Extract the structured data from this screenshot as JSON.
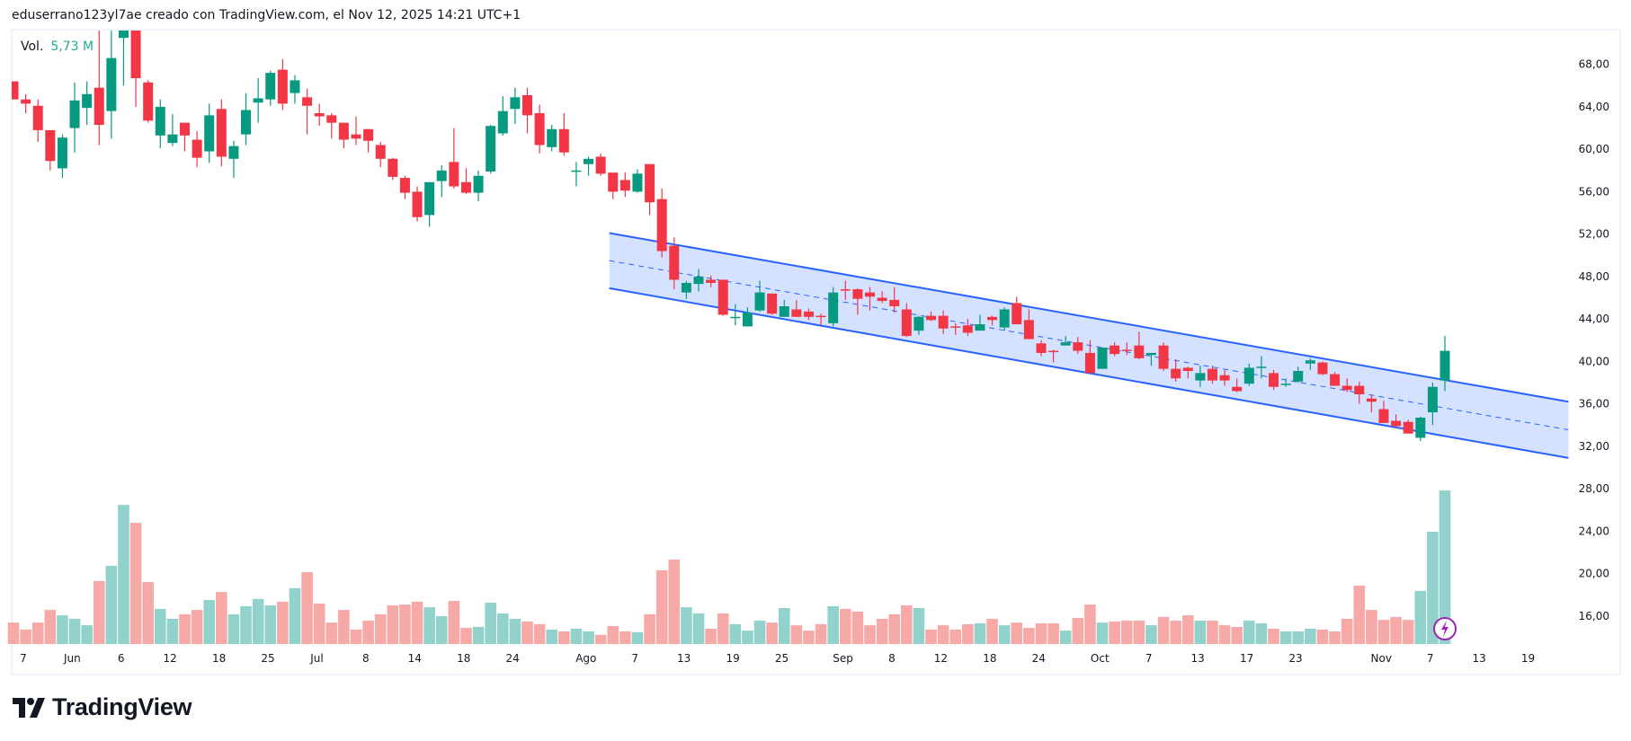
{
  "header": {
    "text": "eduserrano123yl7ae creado con TradingView.com, el Nov 12, 2025 14:21 UTC+1"
  },
  "legend": {
    "label": "Vol.",
    "value": "5,73 M"
  },
  "logo": {
    "text": "TradingView"
  },
  "colors": {
    "up": "#089981",
    "down": "#f23645",
    "vol_up": "#92d2cc",
    "vol_down": "#f7a9a7",
    "channel_line": "#2962ff",
    "channel_fill": "#d3e0ff",
    "event_icon": "#9c27b0"
  },
  "chart_data": {
    "type": "candlestick",
    "ylim": [
      16,
      68
    ],
    "price_ticks": [
      "68,00",
      "64,00",
      "60,00",
      "56,00",
      "52,00",
      "48,00",
      "44,00",
      "40,00",
      "36,00",
      "32,00",
      "28,00",
      "24,00",
      "20,00",
      "16,00"
    ],
    "price_tick_values": [
      68,
      64,
      60,
      56,
      52,
      48,
      44,
      40,
      36,
      32,
      28,
      24,
      20,
      16
    ],
    "x_labels": [
      {
        "text": "7",
        "index": 1
      },
      {
        "text": "Jun",
        "index": 5
      },
      {
        "text": "6",
        "index": 9
      },
      {
        "text": "12",
        "index": 13
      },
      {
        "text": "18",
        "index": 17
      },
      {
        "text": "25",
        "index": 21
      },
      {
        "text": "Jul",
        "index": 25
      },
      {
        "text": "8",
        "index": 29
      },
      {
        "text": "14",
        "index": 33
      },
      {
        "text": "18",
        "index": 37
      },
      {
        "text": "24",
        "index": 41
      },
      {
        "text": "Ago",
        "index": 47
      },
      {
        "text": "7",
        "index": 51
      },
      {
        "text": "13",
        "index": 55
      },
      {
        "text": "19",
        "index": 59
      },
      {
        "text": "25",
        "index": 63
      },
      {
        "text": "Sep",
        "index": 68
      },
      {
        "text": "8",
        "index": 72
      },
      {
        "text": "12",
        "index": 76
      },
      {
        "text": "18",
        "index": 80
      },
      {
        "text": "24",
        "index": 84
      },
      {
        "text": "Oct",
        "index": 89
      },
      {
        "text": "7",
        "index": 93
      },
      {
        "text": "13",
        "index": 97
      },
      {
        "text": "17",
        "index": 101
      },
      {
        "text": "23",
        "index": 105
      },
      {
        "text": "Nov",
        "index": 112
      },
      {
        "text": "7",
        "index": 116
      },
      {
        "text": "13",
        "index": 120
      },
      {
        "text": "19",
        "index": 124
      }
    ],
    "ohlc": [
      [
        66.4,
        66.4,
        64.7,
        64.7
      ],
      [
        64.7,
        65.2,
        63.4,
        64.3
      ],
      [
        64.1,
        64.7,
        60.7,
        61.8
      ],
      [
        61.8,
        61.8,
        58.0,
        58.9
      ],
      [
        58.2,
        61.4,
        57.3,
        61.1
      ],
      [
        62.0,
        66.3,
        59.7,
        64.6
      ],
      [
        63.9,
        66.4,
        62.3,
        65.2
      ],
      [
        65.8,
        72.5,
        60.4,
        62.3
      ],
      [
        63.6,
        71.5,
        61.0,
        68.6
      ],
      [
        70.5,
        72.0,
        66.0,
        71.2
      ],
      [
        71.5,
        72.0,
        64.0,
        66.7
      ],
      [
        66.3,
        66.5,
        62.5,
        62.7
      ],
      [
        61.3,
        64.7,
        60.1,
        64.0
      ],
      [
        60.6,
        63.3,
        60.3,
        61.4
      ],
      [
        62.5,
        62.5,
        59.8,
        61.3
      ],
      [
        60.9,
        61.7,
        58.3,
        59.2
      ],
      [
        59.8,
        64.3,
        58.7,
        63.2
      ],
      [
        63.8,
        64.7,
        58.4,
        59.3
      ],
      [
        59.1,
        60.8,
        57.3,
        60.3
      ],
      [
        61.4,
        65.3,
        60.4,
        63.7
      ],
      [
        64.4,
        66.7,
        62.5,
        64.8
      ],
      [
        64.7,
        67.4,
        64.1,
        67.2
      ],
      [
        67.5,
        68.5,
        63.7,
        64.3
      ],
      [
        65.3,
        67.0,
        64.3,
        66.5
      ],
      [
        64.9,
        65.7,
        61.4,
        64.1
      ],
      [
        63.4,
        64.3,
        62.2,
        63.1
      ],
      [
        63.2,
        63.4,
        61.0,
        62.5
      ],
      [
        62.5,
        62.5,
        60.1,
        60.9
      ],
      [
        61.4,
        63.1,
        60.4,
        61.0
      ],
      [
        61.9,
        61.9,
        59.7,
        60.8
      ],
      [
        60.4,
        60.7,
        58.3,
        59.1
      ],
      [
        59.1,
        59.2,
        57.1,
        57.4
      ],
      [
        57.3,
        57.5,
        55.3,
        55.9
      ],
      [
        56.0,
        56.5,
        53.2,
        53.6
      ],
      [
        53.8,
        56.9,
        52.7,
        56.9
      ],
      [
        57.0,
        58.5,
        55.5,
        58.0
      ],
      [
        58.8,
        62.0,
        56.3,
        56.5
      ],
      [
        56.9,
        58.2,
        55.8,
        55.9
      ],
      [
        55.9,
        58.0,
        55.1,
        57.5
      ],
      [
        57.9,
        62.3,
        57.7,
        62.2
      ],
      [
        61.5,
        65.0,
        61.3,
        63.6
      ],
      [
        63.8,
        65.8,
        62.4,
        64.9
      ],
      [
        65.1,
        65.8,
        61.5,
        63.2
      ],
      [
        63.4,
        64.2,
        59.6,
        60.4
      ],
      [
        60.2,
        62.3,
        59.8,
        61.9
      ],
      [
        61.9,
        63.4,
        59.4,
        59.7
      ],
      [
        57.9,
        58.8,
        56.5,
        58.0
      ],
      [
        58.6,
        59.3,
        57.5,
        59.1
      ],
      [
        59.3,
        59.6,
        57.5,
        57.7
      ],
      [
        57.8,
        57.8,
        55.3,
        56.0
      ],
      [
        57.1,
        57.8,
        55.5,
        56.1
      ],
      [
        56.0,
        58.1,
        55.9,
        57.7
      ],
      [
        58.6,
        58.6,
        53.8,
        55.0
      ],
      [
        55.3,
        56.3,
        49.8,
        50.4
      ],
      [
        50.9,
        51.7,
        46.8,
        47.7
      ],
      [
        46.5,
        47.6,
        45.9,
        47.4
      ],
      [
        47.3,
        48.7,
        46.6,
        48.0
      ],
      [
        47.7,
        48.1,
        47.0,
        47.4
      ],
      [
        47.7,
        47.7,
        44.3,
        44.4
      ],
      [
        44.1,
        45.4,
        43.4,
        44.2
      ],
      [
        43.3,
        45.1,
        43.3,
        44.6
      ],
      [
        44.8,
        47.6,
        44.7,
        46.5
      ],
      [
        46.4,
        46.4,
        44.4,
        44.5
      ],
      [
        44.2,
        45.8,
        44.2,
        45.2
      ],
      [
        44.9,
        45.8,
        44.2,
        44.2
      ],
      [
        44.7,
        45.0,
        43.9,
        44.2
      ],
      [
        44.3,
        44.5,
        43.4,
        44.2
      ],
      [
        43.6,
        47.0,
        43.3,
        46.5
      ],
      [
        46.8,
        47.6,
        45.8,
        46.7
      ],
      [
        46.8,
        46.9,
        44.4,
        45.9
      ],
      [
        46.5,
        47.0,
        44.8,
        46.1
      ],
      [
        46.0,
        46.6,
        45.5,
        45.7
      ],
      [
        45.8,
        47.0,
        44.6,
        45.2
      ],
      [
        44.9,
        45.5,
        42.3,
        42.4
      ],
      [
        42.9,
        44.3,
        42.5,
        44.2
      ],
      [
        44.3,
        44.7,
        43.8,
        43.9
      ],
      [
        44.3,
        44.8,
        42.6,
        43.1
      ],
      [
        43.3,
        43.6,
        42.5,
        43.2
      ],
      [
        43.4,
        44.0,
        42.4,
        42.7
      ],
      [
        42.9,
        44.4,
        42.9,
        43.5
      ],
      [
        44.2,
        44.3,
        43.4,
        43.9
      ],
      [
        43.2,
        45.1,
        42.9,
        44.9
      ],
      [
        45.5,
        46.1,
        43.5,
        43.5
      ],
      [
        43.9,
        44.9,
        42.1,
        42.1
      ],
      [
        41.7,
        42.0,
        40.5,
        40.8
      ],
      [
        41.0,
        41.1,
        39.9,
        40.9
      ],
      [
        41.5,
        42.4,
        41.5,
        41.8
      ],
      [
        41.8,
        42.3,
        40.7,
        41.0
      ],
      [
        40.8,
        42.0,
        38.9,
        38.9
      ],
      [
        39.3,
        41.3,
        39.3,
        41.3
      ],
      [
        41.5,
        41.8,
        40.5,
        40.7
      ],
      [
        41.1,
        41.8,
        40.6,
        41.0
      ],
      [
        41.5,
        42.8,
        40.2,
        40.3
      ],
      [
        40.6,
        40.8,
        39.6,
        40.8
      ],
      [
        41.5,
        41.8,
        39.1,
        39.3
      ],
      [
        39.3,
        40.2,
        38.1,
        38.4
      ],
      [
        39.4,
        39.5,
        38.4,
        39.1
      ],
      [
        38.2,
        39.6,
        37.6,
        38.9
      ],
      [
        39.3,
        39.6,
        37.9,
        38.2
      ],
      [
        38.7,
        39.2,
        37.7,
        38.2
      ],
      [
        37.6,
        38.4,
        37.1,
        37.2
      ],
      [
        37.9,
        39.8,
        37.7,
        39.4
      ],
      [
        39.4,
        40.5,
        38.4,
        39.5
      ],
      [
        38.9,
        39.2,
        37.3,
        37.6
      ],
      [
        37.8,
        38.4,
        37.6,
        37.9
      ],
      [
        38.1,
        39.5,
        38.0,
        39.1
      ],
      [
        39.8,
        40.3,
        39.2,
        40.1
      ],
      [
        39.9,
        40.0,
        38.7,
        38.8
      ],
      [
        38.8,
        39.0,
        37.7,
        37.7
      ],
      [
        37.7,
        38.4,
        37.1,
        37.3
      ],
      [
        37.7,
        38.1,
        36.0,
        36.9
      ],
      [
        36.5,
        36.8,
        35.2,
        36.2
      ],
      [
        35.5,
        36.3,
        34.2,
        34.2
      ],
      [
        34.4,
        35.0,
        33.8,
        33.9
      ],
      [
        34.3,
        34.5,
        33.2,
        33.2
      ],
      [
        32.8,
        34.8,
        32.5,
        34.7
      ],
      [
        35.2,
        38.0,
        34.0,
        37.6
      ],
      [
        38.2,
        42.4,
        37.2,
        41.0
      ]
    ],
    "volume_millions": [
      0.8,
      0.54,
      0.8,
      1.27,
      1.07,
      0.94,
      0.7,
      2.35,
      2.92,
      5.19,
      4.52,
      2.31,
      1.31,
      0.94,
      1.11,
      1.27,
      1.64,
      1.94,
      1.11,
      1.41,
      1.68,
      1.44,
      1.58,
      2.08,
      2.68,
      1.51,
      0.8,
      1.27,
      0.54,
      0.87,
      1.11,
      1.44,
      1.47,
      1.58,
      1.37,
      1.04,
      1.61,
      0.6,
      0.64,
      1.54,
      1.14,
      0.94,
      0.84,
      0.74,
      0.54,
      0.47,
      0.57,
      0.47,
      0.34,
      0.67,
      0.47,
      0.44,
      1.11,
      2.75,
      3.15,
      1.37,
      1.14,
      0.57,
      1.14,
      0.74,
      0.5,
      0.87,
      0.8,
      1.34,
      0.7,
      0.5,
      0.74,
      1.41,
      1.31,
      1.21,
      0.7,
      0.94,
      1.11,
      1.44,
      1.34,
      0.54,
      0.7,
      0.54,
      0.74,
      0.77,
      0.94,
      0.7,
      0.8,
      0.6,
      0.77,
      0.77,
      0.5,
      0.97,
      1.47,
      0.8,
      0.84,
      0.87,
      0.87,
      0.7,
      1.01,
      0.87,
      1.07,
      0.87,
      0.87,
      0.7,
      0.64,
      0.87,
      0.77,
      0.57,
      0.47,
      0.47,
      0.57,
      0.54,
      0.47,
      0.94,
      2.18,
      1.27,
      0.9,
      1.01,
      0.9,
      1.98,
      4.19,
      5.73
    ],
    "channel": {
      "start_index": 49.7,
      "end_index": 128.1,
      "upper": [
        52.1,
        36.2
      ],
      "lower": [
        46.9,
        30.9
      ]
    }
  }
}
